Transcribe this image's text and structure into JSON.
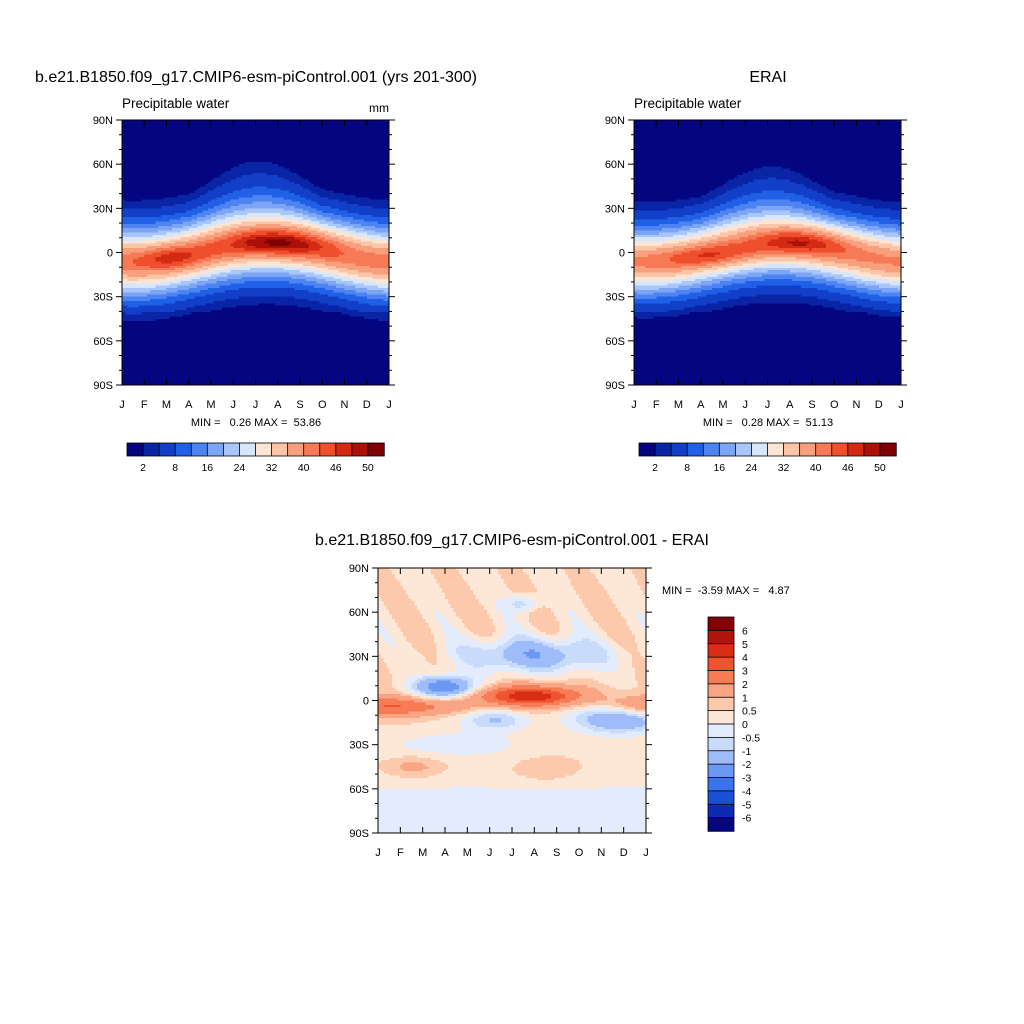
{
  "colors": {
    "seq": [
      "#030680",
      "#0925a6",
      "#113fc8",
      "#2060e6",
      "#4d84f2",
      "#7da5f5",
      "#a9c6fa",
      "#d6e6fb",
      "#fde5d6",
      "#fbc5a8",
      "#f8a07e",
      "#f57a55",
      "#f04f2d",
      "#d32a14",
      "#ab1109",
      "#7d0104"
    ],
    "diff": [
      "#030680",
      "#0c2ab2",
      "#1a4fd9",
      "#3a73ef",
      "#6a98f5",
      "#9dbcf9",
      "#c9dbfb",
      "#e2ecfc",
      "#fde8d8",
      "#fcc9ad",
      "#f9a583",
      "#f67c56",
      "#f0532f",
      "#d82e16",
      "#b0140a",
      "#800305"
    ]
  },
  "chart_data": [
    {
      "type": "heatmap",
      "panel": "model",
      "title": "b.e21.B1850.f09_g17.CMIP6-esm-piControl.001 (yrs 201-300)",
      "subtitle_left": "Precipitable water",
      "units": "mm",
      "x_tick_labels": [
        "J",
        "F",
        "M",
        "A",
        "M",
        "J",
        "J",
        "A",
        "S",
        "O",
        "N",
        "D",
        "J"
      ],
      "y_tick_labels": [
        "90N",
        "60N",
        "30N",
        "0",
        "30S",
        "60S",
        "90S"
      ],
      "ylim": [
        -90,
        90
      ],
      "stats": {
        "text": "MIN =   0.26 MAX =  53.86",
        "min": 0.26,
        "max": 53.86
      },
      "colorbar": {
        "orientation": "horizontal",
        "labels": [
          "2",
          "8",
          "16",
          "24",
          "32",
          "40",
          "46",
          "50"
        ]
      },
      "levels": [
        2,
        4,
        8,
        12,
        16,
        20,
        24,
        28,
        32,
        36,
        40,
        43,
        46,
        48,
        50
      ]
    },
    {
      "type": "heatmap",
      "panel": "obs",
      "title": "ERAI",
      "subtitle_left": "Precipitable water",
      "units": "",
      "x_tick_labels": [
        "J",
        "F",
        "M",
        "A",
        "M",
        "J",
        "J",
        "A",
        "S",
        "O",
        "N",
        "D",
        "J"
      ],
      "y_tick_labels": [
        "90N",
        "60N",
        "30N",
        "0",
        "30S",
        "60S",
        "90S"
      ],
      "ylim": [
        -90,
        90
      ],
      "stats": {
        "text": "MIN =   0.28 MAX =  51.13",
        "min": 0.28,
        "max": 51.13
      },
      "colorbar": {
        "orientation": "horizontal",
        "labels": [
          "2",
          "8",
          "16",
          "24",
          "32",
          "40",
          "46",
          "50"
        ]
      },
      "levels": [
        2,
        4,
        8,
        12,
        16,
        20,
        24,
        28,
        32,
        36,
        40,
        43,
        46,
        48,
        50
      ]
    },
    {
      "type": "heatmap",
      "panel": "difference",
      "title": "b.e21.B1850.f09_g17.CMIP6-esm-piControl.001 - ERAI",
      "x_tick_labels": [
        "J",
        "F",
        "M",
        "A",
        "M",
        "J",
        "J",
        "A",
        "S",
        "O",
        "N",
        "D",
        "J"
      ],
      "y_tick_labels": [
        "90N",
        "60N",
        "30N",
        "0",
        "30S",
        "60S",
        "90S"
      ],
      "ylim": [
        -90,
        90
      ],
      "stats": {
        "text": "MIN =  -3.59 MAX =   4.87",
        "min": -3.59,
        "max": 4.87
      },
      "colorbar": {
        "orientation": "vertical",
        "labels": [
          "6",
          "5",
          "4",
          "3",
          "2",
          "1",
          "0.5",
          "0",
          "-0.5",
          "-1",
          "-2",
          "-3",
          "-4",
          "-5",
          "-6"
        ]
      },
      "levels": [
        -6,
        -5,
        -4,
        -3,
        -2,
        -1,
        -0.5,
        0,
        0.5,
        1,
        2,
        3,
        4,
        5,
        6
      ]
    }
  ]
}
